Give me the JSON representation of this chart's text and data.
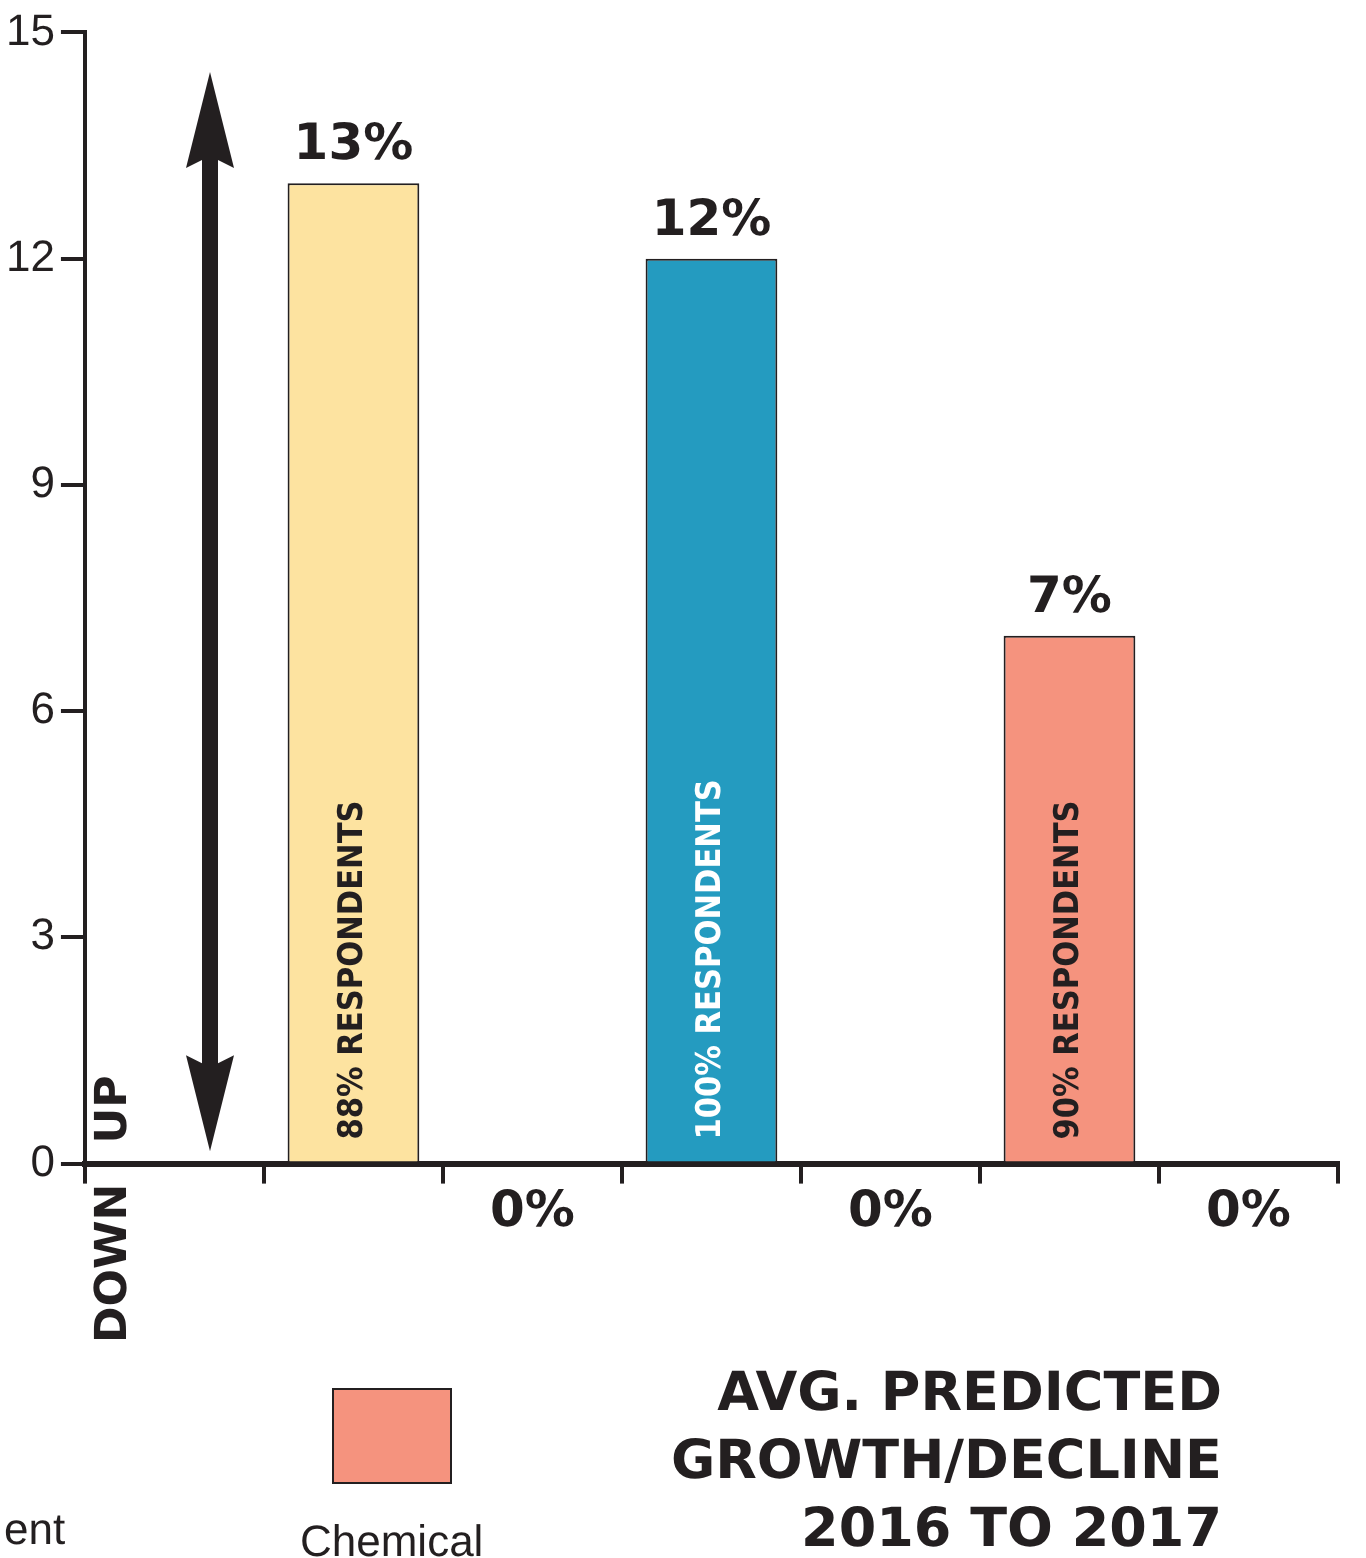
{
  "chart_data": {
    "type": "bar",
    "title": "AVG. PREDICTED GROWTH/DECLINE 2016 TO 2017",
    "categories": [
      null,
      null,
      null,
      null,
      null,
      null,
      null
    ],
    "series": [
      {
        "color": "#fde3a0",
        "values": [
          null,
          13,
          0,
          null,
          null,
          null,
          null
        ],
        "value_labels": [
          null,
          "13%",
          "0%",
          null,
          null,
          null,
          null
        ]
      },
      {
        "color": "#249bc0",
        "values": [
          null,
          null,
          null,
          12,
          0,
          null,
          null
        ],
        "value_labels": [
          null,
          null,
          null,
          "12%",
          "0%",
          null,
          null
        ]
      },
      {
        "name": "Chemical",
        "color": "#f5937e",
        "values": [
          null,
          null,
          null,
          null,
          null,
          7,
          0
        ],
        "value_labels": [
          null,
          null,
          null,
          null,
          null,
          "7%",
          "0%"
        ]
      }
    ],
    "ylim": [
      0,
      15
    ],
    "yticks": [
      0,
      3,
      6,
      9,
      12,
      15
    ],
    "grid": false,
    "legend": "bottom left",
    "annotations": [
      "88% RESPONDENTS",
      "100% RESPONDENTS",
      "90% RESPONDENTS",
      "UP",
      "DOWN",
      "ent"
    ]
  }
}
